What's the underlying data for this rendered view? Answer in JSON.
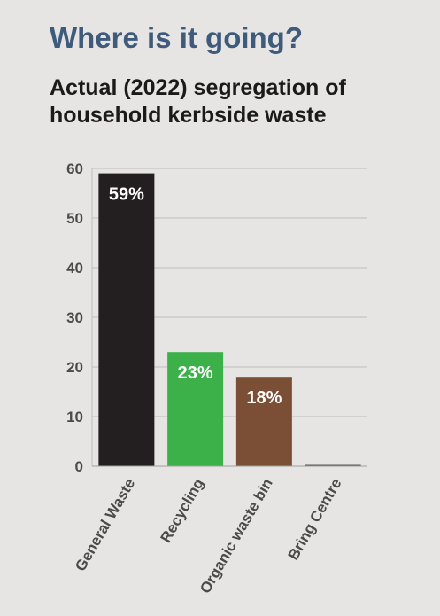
{
  "header": {
    "title": "Where is it going?",
    "subtitle": "Actual (2022) segregation of household kerbside waste"
  },
  "chart_data": {
    "type": "bar",
    "title": "Where is it going?",
    "subtitle": "Actual (2022) segregation of household kerbside waste",
    "categories": [
      "General Waste",
      "Recycling",
      "Organic waste bin",
      "Bring Centre"
    ],
    "values": [
      59,
      23,
      18,
      0
    ],
    "data_labels": [
      "59%",
      "23%",
      "18%",
      ""
    ],
    "colors": [
      "#231f20",
      "#3cb14a",
      "#7b4f35",
      "#555555"
    ],
    "yticks": [
      0,
      10,
      20,
      30,
      40,
      50,
      60
    ],
    "ylim": [
      0,
      60
    ],
    "xlabel": "",
    "ylabel": "",
    "grid": true
  }
}
